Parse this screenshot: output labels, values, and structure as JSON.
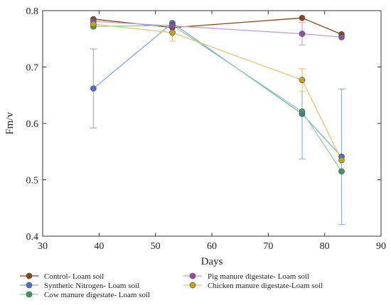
{
  "chart_data": {
    "type": "line",
    "title": "",
    "xlabel": "Days",
    "ylabel": "Fm/v",
    "xlim": [
      30,
      90
    ],
    "ylim": [
      0.4,
      0.8
    ],
    "xticks": [
      30,
      40,
      50,
      60,
      70,
      80,
      90
    ],
    "yticks": [
      0.4,
      0.5,
      0.6,
      0.7,
      0.8
    ],
    "grid": false,
    "legend_position": "bottom",
    "series": [
      {
        "name": "Control- Loam soil",
        "color": "#8B4513",
        "x": [
          39,
          53,
          76,
          83
        ],
        "y": [
          0.785,
          0.77,
          0.787,
          0.758
        ],
        "err": [
          0,
          0,
          0,
          0
        ]
      },
      {
        "name": "Synthetic Nitrogen- Loam soil",
        "color": "#4a6fd0",
        "line_color": "#7fa8e0",
        "x": [
          39,
          53,
          76,
          83
        ],
        "y": [
          0.662,
          0.778,
          0.617,
          0.541
        ],
        "err": [
          0.07,
          0,
          0.08,
          0.12
        ]
      },
      {
        "name": "Cow manure digestate- Loam soil",
        "color": "#3c9a5a",
        "line_color": "#8ccfa4",
        "x": [
          39,
          53,
          76,
          83
        ],
        "y": [
          0.772,
          0.774,
          0.621,
          0.515
        ],
        "err": [
          0,
          0,
          0,
          0
        ]
      },
      {
        "name": "Pig manure digestate- Loam soil",
        "color": "#8e4fa8",
        "line_color": "#c49ad6",
        "x": [
          39,
          53,
          76,
          83
        ],
        "y": [
          0.781,
          0.773,
          0.759,
          0.753
        ],
        "err": [
          0,
          0,
          0.02,
          0
        ]
      },
      {
        "name": "Chicken manure digestate-Loam soil",
        "color": "#c9a21b",
        "line_color": "#e2c772",
        "x": [
          39,
          53,
          76,
          83
        ],
        "y": [
          0.776,
          0.761,
          0.677,
          0.535
        ],
        "err": [
          0,
          0.015,
          0.02,
          0
        ]
      }
    ]
  }
}
